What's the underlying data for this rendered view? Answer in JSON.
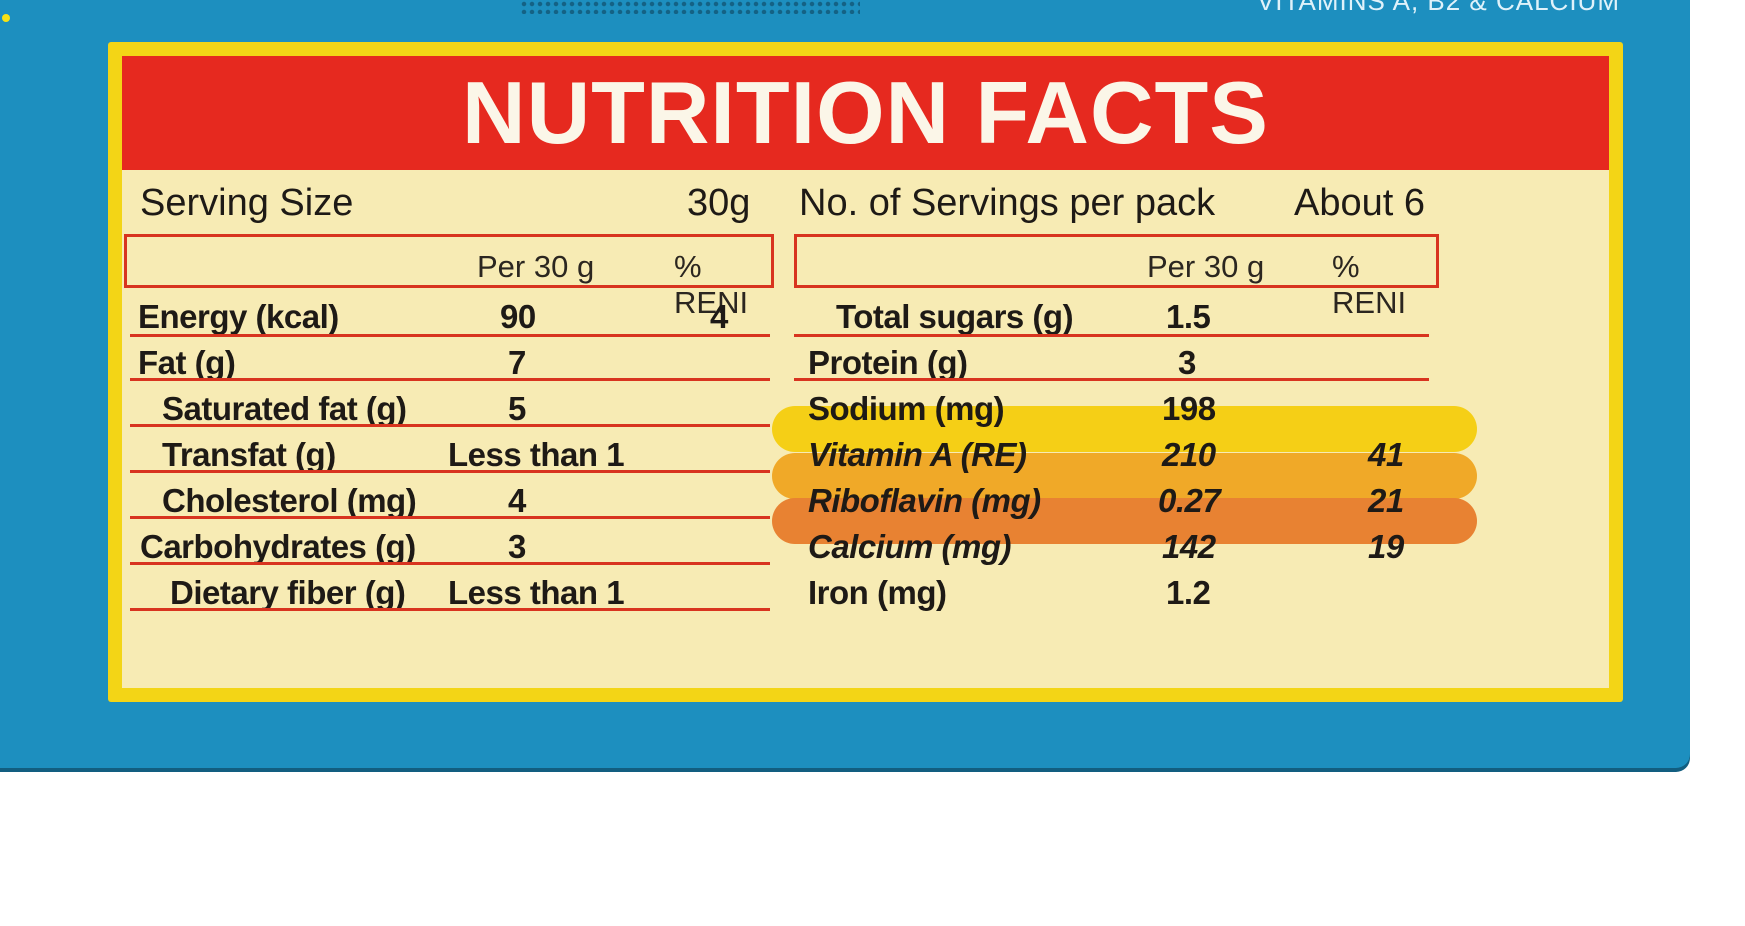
{
  "box_text": "VITAMINS A, B2 & CALCIUM",
  "title": "NUTRITION FACTS",
  "serving": {
    "label": "Serving Size",
    "value": "30g"
  },
  "servings_per_pack": {
    "label": "No. of Servings per pack",
    "value": "About 6"
  },
  "column_headers": {
    "per": "Per 30 g",
    "reni": "% RENI"
  },
  "left_rows": [
    {
      "label": "Energy (kcal)",
      "per": "90",
      "reni": "4"
    },
    {
      "label": "Fat (g)",
      "per": "7",
      "reni": ""
    },
    {
      "label": "Saturated fat (g)",
      "per": "5",
      "reni": ""
    },
    {
      "label": "Transfat (g)",
      "per": "Less than 1",
      "reni": ""
    },
    {
      "label": "Cholesterol (mg)",
      "per": "4",
      "reni": ""
    },
    {
      "label": "Carbohydrates (g)",
      "per": "3",
      "reni": ""
    },
    {
      "label": "Dietary fiber (g)",
      "per": "Less than 1",
      "reni": ""
    }
  ],
  "right_rows": [
    {
      "label": "Total sugars (g)",
      "per": "1.5",
      "reni": ""
    },
    {
      "label": "Protein (g)",
      "per": "3",
      "reni": ""
    },
    {
      "label": "Sodium (mg)",
      "per": "198",
      "reni": ""
    },
    {
      "label": "Vitamin A (RE)",
      "per": "210",
      "reni": "41"
    },
    {
      "label": "Riboflavin (mg)",
      "per": "0.27",
      "reni": "21"
    },
    {
      "label": "Calcium (mg)",
      "per": "142",
      "reni": "19"
    },
    {
      "label": "Iron (mg)",
      "per": "1.2",
      "reni": ""
    }
  ],
  "colors": {
    "box_blue": "#1d8fbf",
    "panel_yellow": "#f3d516",
    "cream": "#f7ebb4",
    "title_red": "#e6291f",
    "rule_red": "#d8341f",
    "highlight_vitamin_a": "#f5cf16",
    "highlight_riboflavin": "#f0a928",
    "highlight_calcium": "#e88232"
  }
}
